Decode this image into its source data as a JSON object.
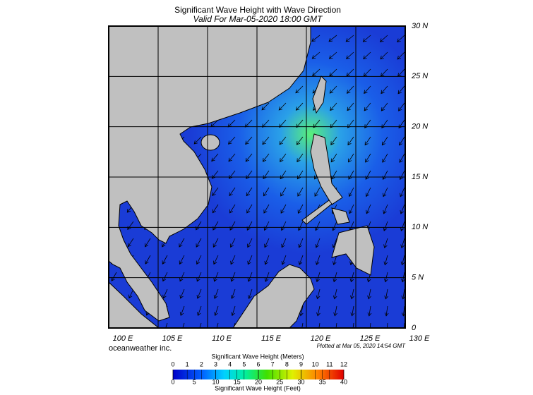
{
  "header": {
    "title": "Significant Wave Height with Wave Direction",
    "subtitle": "Valid For Mar-05-2020 18:00 GMT"
  },
  "map": {
    "lon_ticks": [
      {
        "value": 100,
        "label": "100 E"
      },
      {
        "value": 105,
        "label": "105 E"
      },
      {
        "value": 110,
        "label": "110 E"
      },
      {
        "value": 115,
        "label": "115 E"
      },
      {
        "value": 120,
        "label": "120 E"
      },
      {
        "value": 125,
        "label": "125 E"
      },
      {
        "value": 130,
        "label": "130 E"
      }
    ],
    "lat_ticks": [
      {
        "value": 30,
        "label": "30 N"
      },
      {
        "value": 25,
        "label": "25 N"
      },
      {
        "value": 20,
        "label": "20 N"
      },
      {
        "value": 15,
        "label": "15 N"
      },
      {
        "value": 10,
        "label": "10 N"
      },
      {
        "value": 5,
        "label": "5 N"
      },
      0
    ]
  },
  "footer": {
    "credit": "oceanweather inc.",
    "plotted": "Plotted at Mar 05, 2020 14:54 GMT"
  },
  "colorbar": {
    "meters_label": "Significant Wave Height (Meters)",
    "meters_ticks": [
      0,
      1,
      2,
      3,
      4,
      5,
      6,
      7,
      8,
      9,
      10,
      11,
      12
    ],
    "feet_label": "Significant Wave Height (Feet)",
    "feet_ticks": [
      0,
      5,
      10,
      15,
      20,
      25,
      30,
      35,
      40
    ]
  }
}
